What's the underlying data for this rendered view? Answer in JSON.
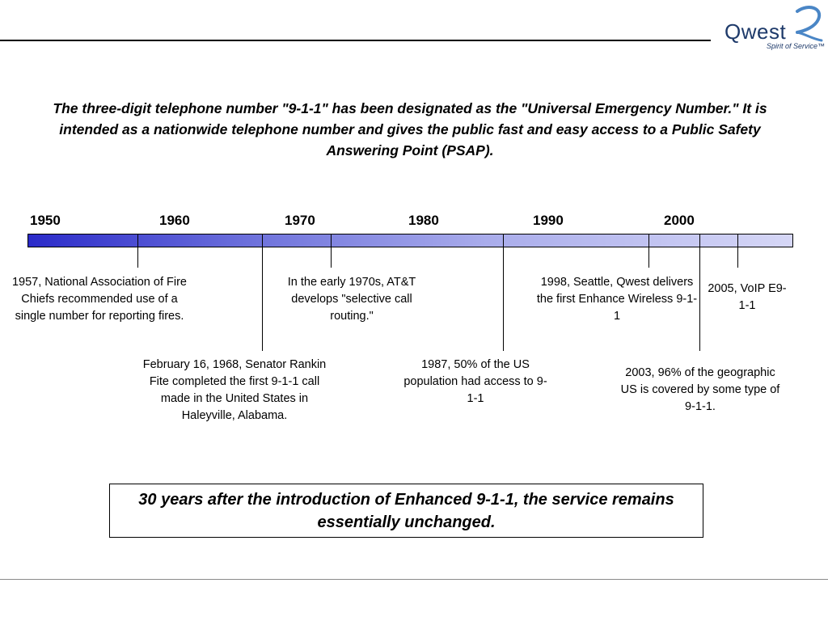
{
  "brand": {
    "name": "Qwest",
    "tagline": "Spirit of Service™",
    "logo_color": "#1e3a6a",
    "swoosh_color": "#4a86c6"
  },
  "intro": "The three-digit telephone number \"9-1-1\" has been designated as the \"Universal Emergency Number.\" It is intended as a nationwide telephone number and gives the public fast and easy access to a Public Safety Answering Point (PSAP).",
  "timeline": {
    "years": [
      "1950",
      "1960",
      "1970",
      "1980",
      "1990",
      "2000"
    ],
    "bar_colors": [
      "#2b2bc9",
      "#d6d7f6"
    ],
    "events": [
      {
        "year": 1957,
        "text": "1957, National Association of Fire Chiefs recommended use of a single number for reporting fires."
      },
      {
        "year": 1968,
        "text": "February 16, 1968, Senator Rankin Fite completed the first 9-1-1 call made in the United States in Haleyville, Alabama."
      },
      {
        "year": 1970,
        "text": "In the early 1970s, AT&T develops \"selective call routing.\""
      },
      {
        "year": 1987,
        "text": "1987, 50% of the US population had access to 9-1-1"
      },
      {
        "year": 1998,
        "text": "1998, Seattle, Qwest delivers the first Enhance Wireless 9-1-1"
      },
      {
        "year": 2003,
        "text": "2003, 96% of the geographic US is covered by some type of 9-1-1."
      },
      {
        "year": 2005,
        "text": "2005, VoIP E9-1-1"
      }
    ]
  },
  "callout": "30 years after the introduction of Enhanced 9-1-1, the service remains essentially unchanged."
}
